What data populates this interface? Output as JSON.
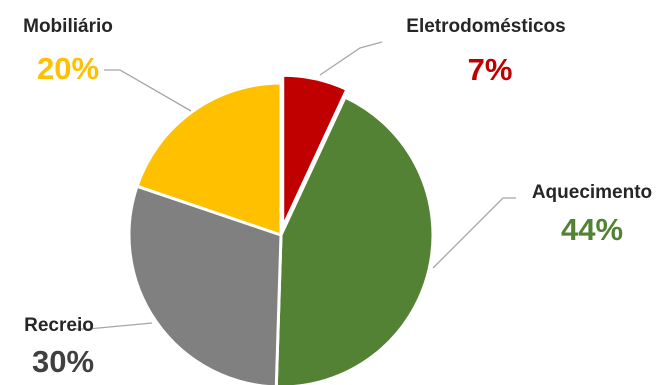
{
  "chart_data": {
    "type": "pie",
    "title": "",
    "categories": [
      "Eletrodomésticos",
      "Aquecimento",
      "Recreio",
      "Mobiliário"
    ],
    "values": [
      7,
      44,
      30,
      20
    ],
    "value_labels": [
      "7%",
      "44%",
      "30%",
      "20%"
    ],
    "colors": [
      "#c00000",
      "#548235",
      "#808080",
      "#ffc000"
    ],
    "label_colors": [
      "#c00000",
      "#548235",
      "#404040",
      "#ffc000"
    ],
    "exploded": [
      "Eletrodomésticos"
    ],
    "legend": "none"
  }
}
